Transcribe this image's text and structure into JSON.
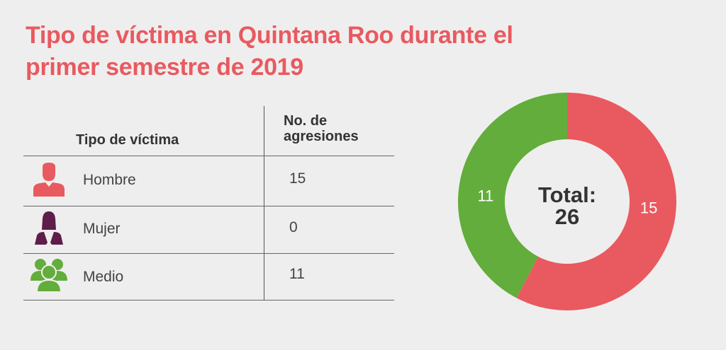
{
  "title": {
    "line1": "Tipo de víctima en Quintana Roo durante el",
    "line2": "primer semestre de 2019"
  },
  "colors": {
    "title": "#e85a60",
    "hombre": "#e85a60",
    "mujer": "#5e1d4a",
    "medio": "#62ad3b"
  },
  "table": {
    "headers": {
      "tipo": "Tipo de víctima",
      "no_line1": "No. de",
      "no_line2": "agresiones"
    },
    "rows": [
      {
        "icon": "man-icon",
        "label": "Hombre",
        "value": "15"
      },
      {
        "icon": "woman-icon",
        "label": "Mujer",
        "value": "0"
      },
      {
        "icon": "group-icon",
        "label": "Medio",
        "value": "11"
      }
    ]
  },
  "chart_data": {
    "type": "pie",
    "subtype": "donut",
    "title": "Tipo de víctima en Quintana Roo durante el primer semestre de 2019",
    "center_label_line1": "Total:",
    "center_label_line2": "26",
    "total": 26,
    "slices": [
      {
        "name": "Hombre",
        "value": 15,
        "label": "15",
        "color": "#e85a60"
      },
      {
        "name": "Medio",
        "value": 11,
        "label": "11",
        "color": "#62ad3b"
      }
    ],
    "start": "top",
    "direction": "clockwise"
  }
}
